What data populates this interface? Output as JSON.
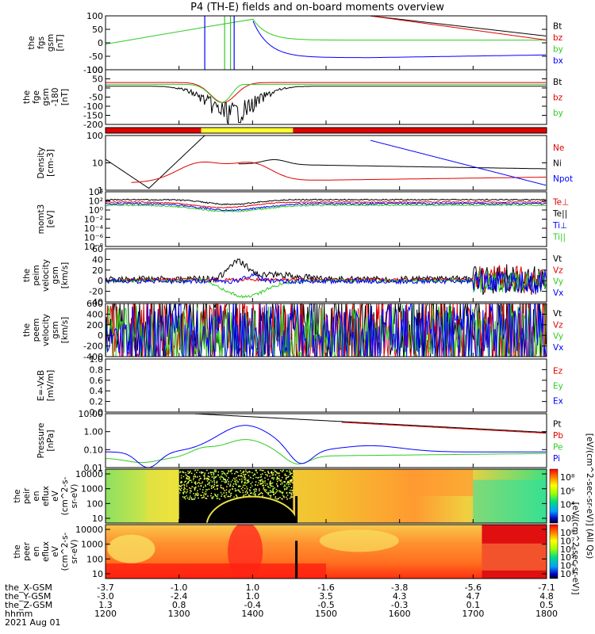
{
  "title": "P4 (TH-E) fields and on-board moments overview",
  "colors": {
    "black": "#000000",
    "red": "#e00000",
    "green": "#2ecc20",
    "blue": "#0000ff",
    "yellow": "#ffff30"
  },
  "chart_data": [
    {
      "type": "line",
      "id": "p1",
      "ylabel": [
        "the",
        "fgs",
        "gsm",
        "[nT]"
      ],
      "yticks": [
        "100",
        "50",
        "0",
        "-50",
        "-100"
      ],
      "ylim": [
        -100,
        100
      ],
      "legend": [
        {
          "label": "Bt",
          "color": "black"
        },
        {
          "label": "bz",
          "color": "red"
        },
        {
          "label": "by",
          "color": "green"
        },
        {
          "label": "bx",
          "color": "blue"
        }
      ]
    },
    {
      "type": "line",
      "id": "p2",
      "ylabel": [
        "the",
        "fge",
        "gsm",
        "-180",
        "[nT]"
      ],
      "yticks": [
        "100",
        "50",
        "0",
        "-50",
        "-100",
        "-150",
        "-200"
      ],
      "ylim": [
        -200,
        100
      ],
      "legend": [
        {
          "label": "Bt",
          "color": "black"
        },
        {
          "label": "bz",
          "color": "red"
        },
        {
          "label": "by",
          "color": "green"
        }
      ]
    },
    {
      "type": "bar",
      "id": "mode_bar",
      "segments": [
        {
          "from": 1200,
          "to": 1330,
          "color": "red"
        },
        {
          "from": 1330,
          "to": 1455,
          "color": "yellow"
        },
        {
          "from": 1455,
          "to": 1800,
          "color": "red"
        }
      ]
    },
    {
      "type": "line",
      "id": "p3",
      "scale": "log",
      "ylabel": [
        "Density",
        "[cm-3]"
      ],
      "yticks": [
        "100",
        "10",
        "1"
      ],
      "legend": [
        {
          "label": "Ne",
          "color": "red"
        },
        {
          "label": "Ni",
          "color": "black"
        },
        {
          "label": "Npot",
          "color": "blue"
        }
      ]
    },
    {
      "type": "line",
      "id": "p4",
      "scale": "log",
      "ylabel": [
        "momt3",
        "[eV]"
      ],
      "yticks": [
        "10⁴",
        "10²",
        "10⁰",
        "10⁻²",
        "10⁻⁴",
        "10⁻⁶",
        "10⁻⁸"
      ],
      "legend": [
        {
          "label": "Te⊥",
          "color": "red"
        },
        {
          "label": "Te||",
          "color": "black"
        },
        {
          "label": "Ti⊥",
          "color": "blue"
        },
        {
          "label": "Ti||",
          "color": "green"
        }
      ]
    },
    {
      "type": "line",
      "id": "p5",
      "ylabel": [
        "the",
        "peim",
        "velocity",
        "gsm",
        "[km/s]"
      ],
      "yticks": [
        "60",
        "40",
        "20",
        "0",
        "-20",
        "-40"
      ],
      "ylim": [
        -40,
        60
      ],
      "legend": [
        {
          "label": "Vt",
          "color": "black"
        },
        {
          "label": "Vz",
          "color": "red"
        },
        {
          "label": "Vy",
          "color": "green"
        },
        {
          "label": "Vx",
          "color": "blue"
        }
      ]
    },
    {
      "type": "line",
      "id": "p6",
      "ylabel": [
        "the",
        "peem",
        "velocity",
        "gsm",
        "[km/s]"
      ],
      "yticks": [
        "600",
        "400",
        "200",
        "0",
        "-200",
        "-400"
      ],
      "ylim": [
        -400,
        600
      ],
      "legend": [
        {
          "label": "Vt",
          "color": "black"
        },
        {
          "label": "Vz",
          "color": "red"
        },
        {
          "label": "Vy",
          "color": "green"
        },
        {
          "label": "Vx",
          "color": "blue"
        }
      ]
    },
    {
      "type": "line",
      "id": "p7",
      "ylabel": [
        "E=-VxB",
        "[mV/m]"
      ],
      "yticks": [
        "1.0",
        "0.8",
        "0.6",
        "0.4",
        "0.2",
        "0.0"
      ],
      "ylim": [
        0,
        1
      ],
      "legend": [
        {
          "label": "Ez",
          "color": "red"
        },
        {
          "label": "Ey",
          "color": "green"
        },
        {
          "label": "Ex",
          "color": "blue"
        }
      ]
    },
    {
      "type": "line",
      "id": "p8",
      "scale": "log",
      "ylabel": [
        "Pressure",
        "[nPa]"
      ],
      "yticks": [
        "10.00",
        "1.00",
        "0.10",
        "0.01"
      ],
      "legend": [
        {
          "label": "Pt",
          "color": "black"
        },
        {
          "label": "Pb",
          "color": "red"
        },
        {
          "label": "Pe",
          "color": "green"
        },
        {
          "label": "Pi",
          "color": "blue"
        }
      ],
      "side_label": "[eV/(cm^2-sec-sr-eV)] (All Qs)"
    },
    {
      "type": "heatmap",
      "id": "p9",
      "ylabel": [
        "the",
        "peir",
        "en",
        "eflux",
        "eV",
        "(cm^2-s-",
        "sr-eV)"
      ],
      "yticks": [
        "10000",
        "1000",
        "100",
        "10"
      ]
    },
    {
      "type": "heatmap",
      "id": "p10",
      "ylabel": [
        "the",
        "peer",
        "en",
        "eflux",
        "eV",
        "(cm^2-s-",
        "sr-eV)"
      ],
      "yticks": [
        "10000",
        "1000",
        "100",
        "10"
      ]
    }
  ],
  "colorbar": {
    "ticks_top": [
      "10⁸",
      "10⁶",
      "10⁴",
      "10²"
    ],
    "ticks_bottom": [
      "10⁸",
      "10⁷",
      "10⁶",
      "10⁵",
      "10⁴",
      "10³"
    ],
    "label": "[eV/(cm^2-sec-sr-eV)]"
  },
  "xaxis": {
    "rows": [
      {
        "label": "the_X-GSM",
        "values": [
          "-3.7",
          "-1.0",
          "1.0",
          "-1.6",
          "-3.8",
          "-5.6",
          "-7.1"
        ]
      },
      {
        "label": "the_Y-GSM",
        "values": [
          "-3.0",
          "-2.4",
          "1.0",
          "3.5",
          "4.3",
          "4.7",
          "4.8"
        ]
      },
      {
        "label": "the_Z-GSM",
        "values": [
          "1.3",
          "0.8",
          "-0.4",
          "-0.5",
          "-0.3",
          "0.1",
          "0.5"
        ]
      },
      {
        "label": "hhmm",
        "values": [
          "1200",
          "1300",
          "1400",
          "1500",
          "1600",
          "1700",
          "1800"
        ]
      }
    ],
    "date": "2021 Aug 01"
  }
}
